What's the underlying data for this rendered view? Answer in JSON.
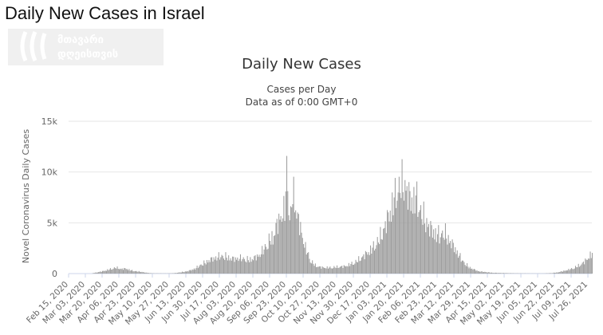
{
  "page": {
    "title": "Daily New Cases in Israel"
  },
  "watermark": {
    "icon": "georgian-media-logo-icon",
    "text_line1": "მთავარი",
    "text_line2": "დღეისთვის"
  },
  "colors": {
    "bar": "#9e9e9e",
    "grid": "#e6e6e6",
    "axis_text": "#666666"
  },
  "chart_data": {
    "type": "bar",
    "title": "Daily New Cases",
    "subtitle_line1": "Cases per Day",
    "subtitle_line2": "Data as of 0:00 GMT+0",
    "ylabel": "Novel Coronavirus Daily Cases",
    "xlabel": "",
    "ylim": [
      0,
      15000
    ],
    "grid": true,
    "y_ticks": [
      {
        "value": 0,
        "label": "0"
      },
      {
        "value": 5000,
        "label": "5k"
      },
      {
        "value": 10000,
        "label": "10k"
      },
      {
        "value": 15000,
        "label": "15k"
      }
    ],
    "x_start": "2020-02-15",
    "x_end": "2021-07-30",
    "x_ticks": [
      "2020-02-15",
      "2020-03-03",
      "2020-03-20",
      "2020-04-06",
      "2020-04-23",
      "2020-05-10",
      "2020-05-27",
      "2020-06-13",
      "2020-06-30",
      "2020-07-17",
      "2020-08-03",
      "2020-08-20",
      "2020-09-06",
      "2020-09-23",
      "2020-10-10",
      "2020-10-27",
      "2020-11-13",
      "2020-11-30",
      "2020-12-17",
      "2021-01-03",
      "2021-01-20",
      "2021-02-06",
      "2021-02-23",
      "2021-03-12",
      "2021-03-29",
      "2021-04-15",
      "2021-05-02",
      "2021-05-19",
      "2021-06-05",
      "2021-06-22",
      "2021-07-09",
      "2021-07-26"
    ],
    "x_tick_labels": [
      "Feb 15, 2020",
      "Mar 03, 2020",
      "Mar 20, 2020",
      "Apr 06, 2020",
      "Apr 23, 2020",
      "May 10, 2020",
      "May 27, 2020",
      "Jun 13, 2020",
      "Jun 30, 2020",
      "Jul 17, 2020",
      "Aug 03, 2020",
      "Aug 20, 2020",
      "Sep 06, 2020",
      "Sep 23, 2020",
      "Oct 10, 2020",
      "Oct 27, 2020",
      "Nov 13, 2020",
      "Nov 30, 2020",
      "Dec 17, 2020",
      "Jan 03, 2021",
      "Jan 20, 2021",
      "Feb 06, 2021",
      "Feb 23, 2021",
      "Mar 12, 2021",
      "Mar 29, 2021",
      "Apr 15, 2021",
      "May 02, 2021",
      "May 19, 2021",
      "Jun 05, 2021",
      "Jun 22, 2021",
      "Jul 09, 2021",
      "Jul 26, 2021"
    ],
    "series": [
      {
        "points": [
          [
            "2020-03-10",
            40
          ],
          [
            "2020-03-20",
            250
          ],
          [
            "2020-03-25",
            400
          ],
          [
            "2020-03-30",
            550
          ],
          [
            "2020-04-03",
            650
          ],
          [
            "2020-04-08",
            500
          ],
          [
            "2020-04-13",
            550
          ],
          [
            "2020-04-18",
            350
          ],
          [
            "2020-04-23",
            250
          ],
          [
            "2020-04-28",
            200
          ],
          [
            "2020-05-03",
            100
          ],
          [
            "2020-05-10",
            30
          ],
          [
            "2020-05-25",
            20
          ],
          [
            "2020-06-01",
            50
          ],
          [
            "2020-06-08",
            150
          ],
          [
            "2020-06-15",
            280
          ],
          [
            "2020-06-22",
            550
          ],
          [
            "2020-06-27",
            900
          ],
          [
            "2020-07-02",
            1200
          ],
          [
            "2020-07-07",
            1500
          ],
          [
            "2020-07-12",
            1700
          ],
          [
            "2020-07-17",
            1900
          ],
          [
            "2020-07-22",
            1900
          ],
          [
            "2020-07-27",
            1700
          ],
          [
            "2020-08-01",
            1600
          ],
          [
            "2020-08-06",
            1700
          ],
          [
            "2020-08-11",
            1600
          ],
          [
            "2020-08-16",
            1500
          ],
          [
            "2020-08-21",
            1700
          ],
          [
            "2020-08-26",
            2000
          ],
          [
            "2020-08-31",
            2700
          ],
          [
            "2020-09-03",
            3200
          ],
          [
            "2020-09-06",
            3700
          ],
          [
            "2020-09-09",
            4000
          ],
          [
            "2020-09-12",
            5000
          ],
          [
            "2020-09-15",
            5800
          ],
          [
            "2020-09-18",
            6500
          ],
          [
            "2020-09-21",
            7000
          ],
          [
            "2020-09-23",
            11200
          ],
          [
            "2020-09-25",
            8000
          ],
          [
            "2020-09-27",
            6000
          ],
          [
            "2020-09-29",
            9000
          ],
          [
            "2020-10-01",
            8500
          ],
          [
            "2020-10-03",
            6500
          ],
          [
            "2020-10-06",
            5400
          ],
          [
            "2020-10-09",
            4000
          ],
          [
            "2020-10-12",
            2800
          ],
          [
            "2020-10-15",
            2000
          ],
          [
            "2020-10-18",
            1300
          ],
          [
            "2020-10-22",
            900
          ],
          [
            "2020-10-27",
            700
          ],
          [
            "2020-11-01",
            650
          ],
          [
            "2020-11-06",
            650
          ],
          [
            "2020-11-11",
            700
          ],
          [
            "2020-11-16",
            750
          ],
          [
            "2020-11-21",
            800
          ],
          [
            "2020-11-26",
            1000
          ],
          [
            "2020-12-01",
            1200
          ],
          [
            "2020-12-06",
            1600
          ],
          [
            "2020-12-11",
            2000
          ],
          [
            "2020-12-16",
            2500
          ],
          [
            "2020-12-21",
            3000
          ],
          [
            "2020-12-26",
            3800
          ],
          [
            "2020-12-31",
            5000
          ],
          [
            "2021-01-05",
            6500
          ],
          [
            "2021-01-09",
            8000
          ],
          [
            "2021-01-13",
            9000
          ],
          [
            "2021-01-17",
            9800
          ],
          [
            "2021-01-20",
            10000
          ],
          [
            "2021-01-23",
            9000
          ],
          [
            "2021-01-27",
            8000
          ],
          [
            "2021-02-01",
            8500
          ],
          [
            "2021-02-05",
            7000
          ],
          [
            "2021-02-10",
            6000
          ],
          [
            "2021-02-15",
            5000
          ],
          [
            "2021-02-20",
            4500
          ],
          [
            "2021-02-25",
            4200
          ],
          [
            "2021-03-02",
            4500
          ],
          [
            "2021-03-06",
            3800
          ],
          [
            "2021-03-10",
            3200
          ],
          [
            "2021-03-14",
            2500
          ],
          [
            "2021-03-18",
            1800
          ],
          [
            "2021-03-22",
            1200
          ],
          [
            "2021-03-27",
            700
          ],
          [
            "2021-04-01",
            450
          ],
          [
            "2021-04-06",
            250
          ],
          [
            "2021-04-12",
            180
          ],
          [
            "2021-04-20",
            90
          ],
          [
            "2021-05-01",
            60
          ],
          [
            "2021-05-15",
            30
          ],
          [
            "2021-06-01",
            15
          ],
          [
            "2021-06-10",
            15
          ],
          [
            "2021-06-18",
            50
          ],
          [
            "2021-06-24",
            120
          ],
          [
            "2021-06-30",
            250
          ],
          [
            "2021-07-05",
            400
          ],
          [
            "2021-07-10",
            550
          ],
          [
            "2021-07-15",
            800
          ],
          [
            "2021-07-20",
            1100
          ],
          [
            "2021-07-25",
            1600
          ],
          [
            "2021-07-28",
            2000
          ],
          [
            "2021-07-30",
            2200
          ]
        ]
      }
    ]
  }
}
